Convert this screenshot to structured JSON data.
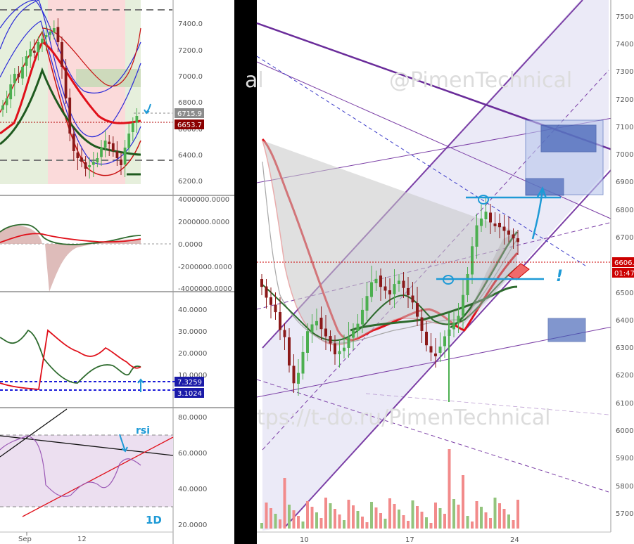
{
  "left_chart": {
    "watermark": "",
    "price_scale": [
      "7400.0",
      "7200.0",
      "7000.0",
      "6800.0",
      "6600.0",
      "6400.0",
      "6200.0"
    ],
    "last_price": {
      "label": "6653.7",
      "color": "#8b0000"
    },
    "other_price": {
      "label": "6715.9",
      "color": "#7f7f7f"
    },
    "osc1_scale": [
      "4000000.0000",
      "2000000.0000",
      "0.0000",
      "-2000000.0000",
      "-4000000.0000"
    ],
    "osc2_scale": [
      "40.0000",
      "30.0000",
      "20.0000",
      "10.0000"
    ],
    "osc2_badges": [
      {
        "label": "7.3259",
        "color": "#1a1aa8"
      },
      {
        "label": "3.1024",
        "color": "#1a1aa8"
      }
    ],
    "rsi_scale": [
      "80.0000",
      "60.0000",
      "40.0000",
      "20.0000"
    ],
    "rsi_label": "rsi",
    "timeframe_label": "1D",
    "x_labels": [
      "Sep",
      "12"
    ]
  },
  "right_chart": {
    "watermark_top": "@PimenTechnical",
    "watermark_partial": "al",
    "watermark_bottom": "tps://t-do.ru/PimenTechnical",
    "price_scale": [
      "7500",
      "7400",
      "7300",
      "7200",
      "7100",
      "7000",
      "6900",
      "6800",
      "6700",
      "6600",
      "6500",
      "6400",
      "6300",
      "6200",
      "6100",
      "6000",
      "5900",
      "5800",
      "5700"
    ],
    "last_price": {
      "label": "6606.",
      "color": "#cc0000"
    },
    "countdown": {
      "label": "01:47",
      "color": "#cc0000"
    },
    "x_labels": [
      "10",
      "17",
      "24"
    ],
    "annotation_mark": "!"
  },
  "colors": {
    "bull": "#4caf50",
    "bear": "#8b1a1a",
    "channel": "#7b3fa6",
    "blue_box": "#3f5fb5",
    "cyan": "#1e9ad6",
    "red_line": "#e0101a",
    "ma_green": "#2e6b2e"
  },
  "chart_data": [
    {
      "type": "candlestick",
      "title": "",
      "panel": "left main",
      "ylim": [
        6150,
        7550
      ],
      "price_levels": {
        "last": 6653.7,
        "marker": 6715.9
      },
      "y_labels": [
        7400,
        7200,
        7000,
        6800,
        6600,
        6400,
        6200
      ],
      "x_labels": [
        "Sep",
        "12"
      ]
    },
    {
      "type": "area",
      "panel": "left oscillator 1",
      "ylim": [
        -4000000,
        4000000
      ],
      "y_labels": [
        4000000,
        2000000,
        0,
        -2000000,
        -4000000
      ]
    },
    {
      "type": "line",
      "panel": "left oscillator 2",
      "y_labels": [
        40,
        30,
        20,
        10
      ],
      "badges": [
        7.3259,
        3.1024
      ]
    },
    {
      "type": "line",
      "panel": "left rsi",
      "y_labels": [
        80,
        60,
        40,
        20
      ],
      "bands": [
        70,
        30
      ]
    },
    {
      "type": "candlestick",
      "panel": "right main",
      "ylim": [
        5650,
        7550
      ],
      "y_labels": [
        7500,
        7400,
        7300,
        7200,
        7100,
        7000,
        6900,
        6800,
        6700,
        6600,
        6500,
        6400,
        6300,
        6200,
        6100,
        6000,
        5900,
        5800,
        5700
      ],
      "x_labels": [
        "10",
        "17",
        "24"
      ],
      "last_price": 6606
    }
  ]
}
